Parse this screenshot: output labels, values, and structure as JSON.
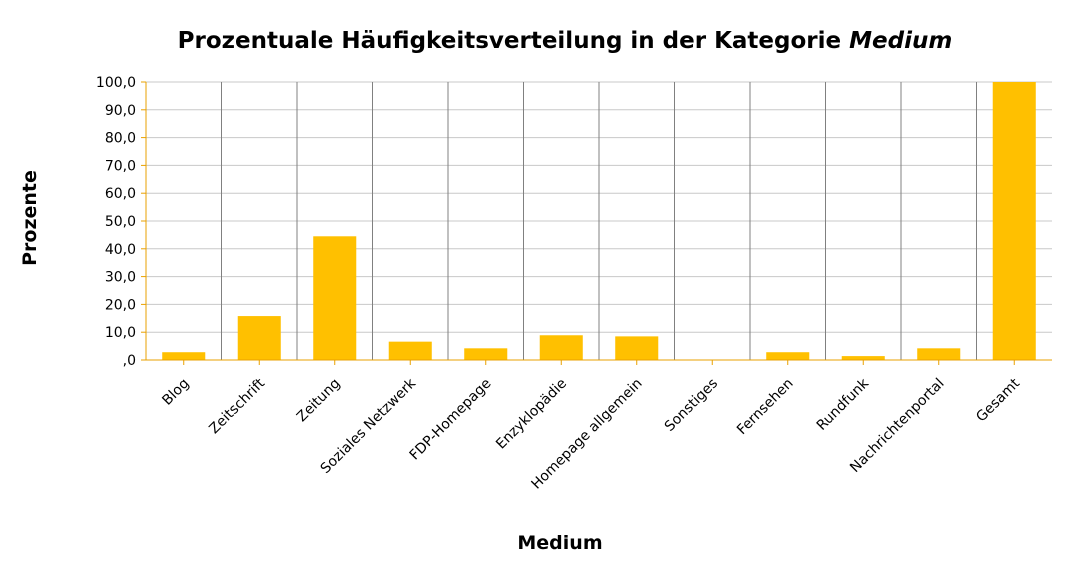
{
  "chart_data": {
    "type": "bar",
    "title_main": "Prozentuale Häufigkeitsverteilung in der Kategorie",
    "title_em": "Medium",
    "xlabel": "Medium",
    "ylabel": "Prozente",
    "categories": [
      "Blog",
      "Zeitschrift",
      "Zeitung",
      "Soziales Netzwerk",
      "FDP-Homepage",
      "Enzyklopädie",
      "Homepage allgemein",
      "Sonstiges",
      "Fernsehen",
      "Rundfunk",
      "Nachrichtenportal",
      "Gesamt"
    ],
    "values": [
      2.8,
      15.8,
      44.5,
      6.6,
      4.2,
      8.9,
      8.5,
      0.0,
      2.8,
      1.4,
      4.2,
      100.0
    ],
    "ylim": [
      0,
      100
    ],
    "yticks": [
      ",0",
      "10,0",
      "20,0",
      "30,0",
      "40,0",
      "50,0",
      "60,0",
      "70,0",
      "80,0",
      "90,0",
      "100,0"
    ],
    "grid": true,
    "bar_color": "#FFC000",
    "axis_color": "#E8A000"
  }
}
